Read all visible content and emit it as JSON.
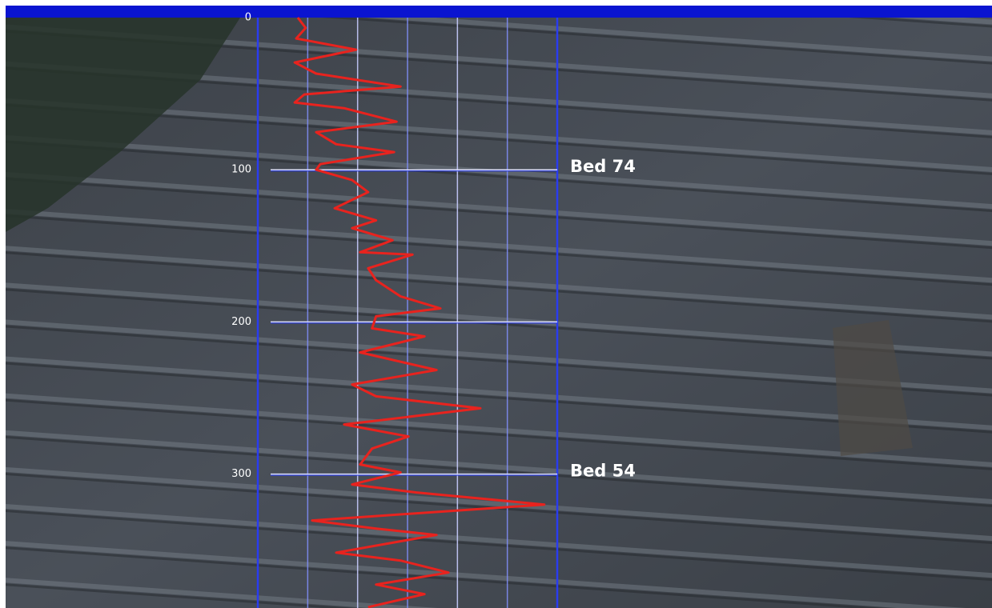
{
  "chart_data": {
    "type": "line",
    "xlim": [
      0,
      6
    ],
    "ylim": [
      0,
      388
    ],
    "yticks": [
      0,
      100,
      200,
      300
    ],
    "inverted_y": true,
    "grid": true,
    "series": [
      {
        "color": "#e8231e",
        "x": [
          0.8,
          0.96,
          0.77,
          1.97,
          0.74,
          1.17,
          2.86,
          0.93,
          0.74,
          1.73,
          2.78,
          1.17,
          1.57,
          2.73,
          1.25,
          1.17,
          1.89,
          2.21,
          1.54,
          2.37,
          1.89,
          2.7,
          2.05,
          3.1,
          2.21,
          2.37,
          2.86,
          3.66,
          2.37,
          2.29,
          3.34,
          2.05,
          3.58,
          1.89,
          2.37,
          4.46,
          1.73,
          3.02,
          2.29,
          2.05,
          2.86,
          1.89,
          3.18,
          5.74,
          1.09,
          2.37,
          3.58,
          1.57,
          2.86,
          3.82,
          2.37,
          3.34,
          2.21
        ],
        "y": [
          0,
          6.8,
          13.7,
          21.1,
          29.5,
          36.8,
          45.3,
          50.5,
          55.8,
          59.5,
          68.4,
          75.3,
          83.2,
          88.4,
          96.3,
          100,
          106.8,
          114.7,
          125.3,
          133.2,
          138.4,
          146.3,
          154.2,
          155.8,
          164.7,
          172.6,
          183.2,
          191.1,
          196.3,
          204.2,
          209.5,
          220,
          231.6,
          241.1,
          248.9,
          256.8,
          267.4,
          275.3,
          283.2,
          293.7,
          298.9,
          306.8,
          312.1,
          320,
          330.5,
          335.8,
          340,
          351.6,
          356.8,
          364.7,
          372.6,
          378.9,
          387.4
        ]
      }
    ],
    "annotations": [
      {
        "text": "Bed 74",
        "y": 100
      },
      {
        "text": "Bed 54",
        "y": 300
      }
    ]
  }
}
